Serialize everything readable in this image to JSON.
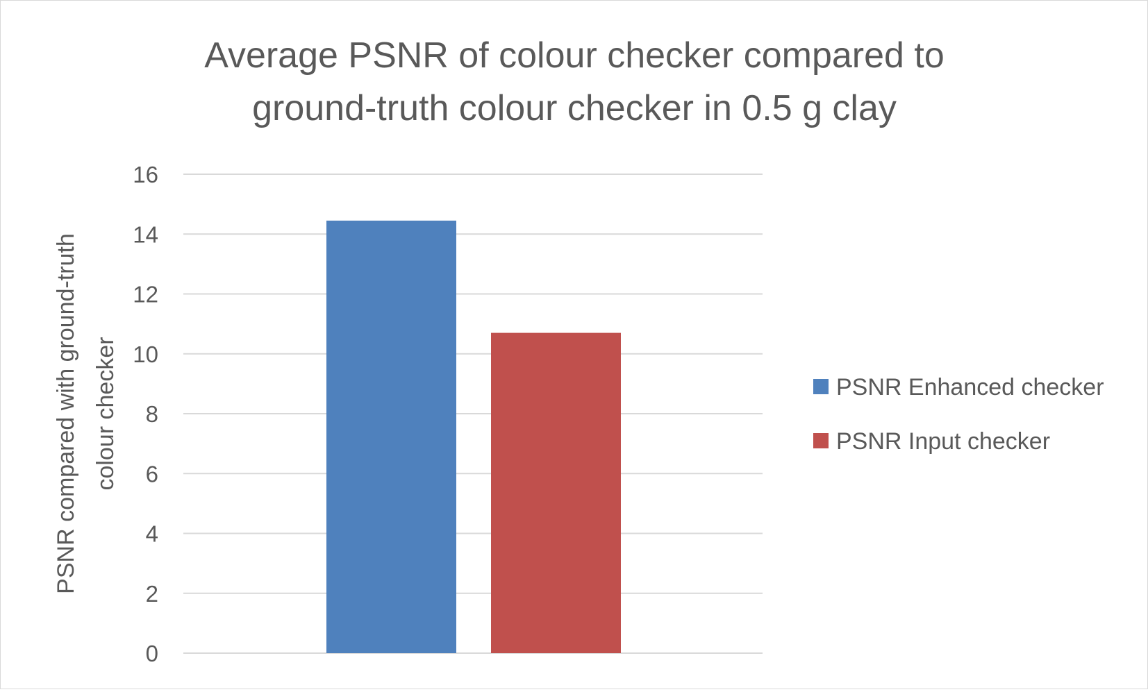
{
  "chart_data": {
    "type": "bar",
    "title": "Average PSNR of colour checker compared to ground-truth colour checker in 0.5 g clay",
    "title_lines": [
      "Average PSNR of colour checker compared to",
      "ground-truth colour checker in 0.5 g clay"
    ],
    "ylabel": "PSNR compared with ground-truth colour checker",
    "ylabel_lines": [
      "PSNR compared with ground-truth",
      "colour checker"
    ],
    "xlabel": "",
    "ylim": [
      0,
      16
    ],
    "yticks": [
      0,
      2,
      4,
      6,
      8,
      10,
      12,
      14,
      16
    ],
    "grid": true,
    "legend_position": "right",
    "series": [
      {
        "name": "PSNR Enhanced checker",
        "values": [
          14.45
        ],
        "color": "#4f81bd"
      },
      {
        "name": "PSNR Input checker",
        "values": [
          10.7
        ],
        "color": "#c0504d"
      }
    ],
    "colors": {
      "gridline": "#d9d9d9",
      "text": "#595959",
      "border": "#d9d9d9"
    }
  }
}
